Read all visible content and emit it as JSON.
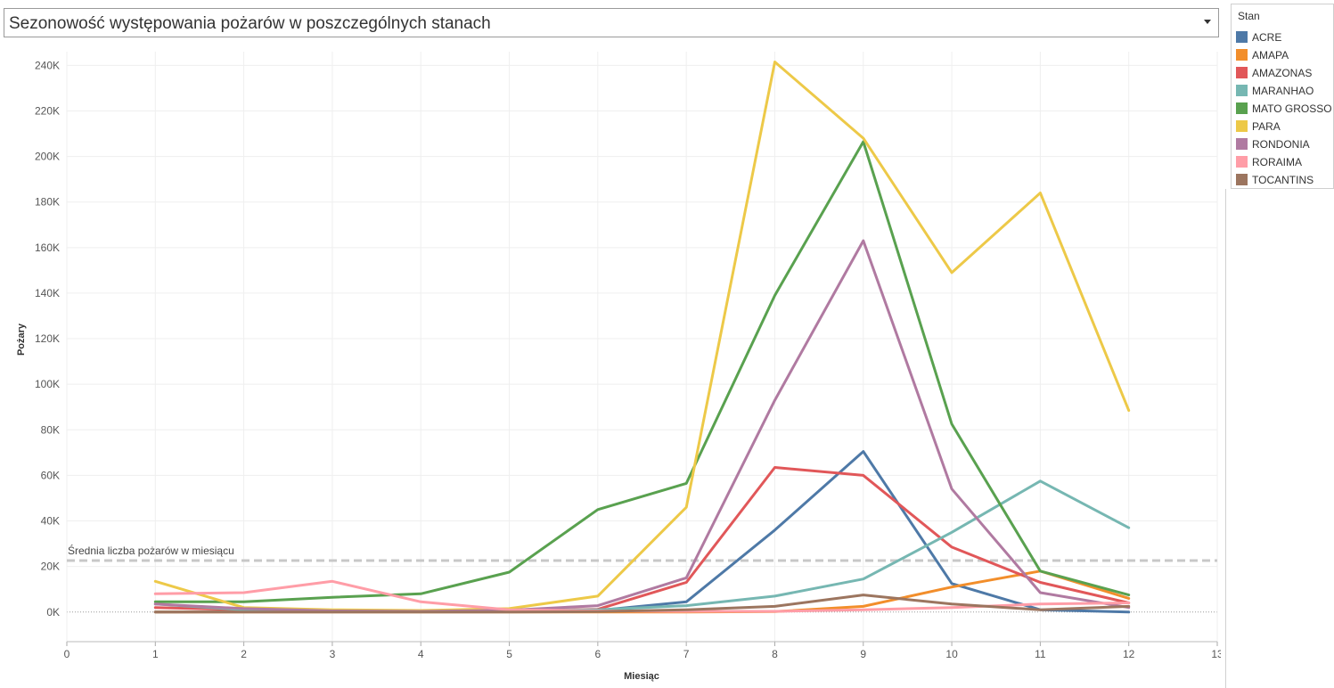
{
  "colors": {
    "ACRE": "#4e79a7",
    "AMAPA": "#f28e2b",
    "AMAZONAS": "#e15759",
    "MARANHAO": "#76b7b2",
    "MATO GROSSO": "#59a14f",
    "PARA": "#edc948",
    "RONDONIA": "#b07aa1",
    "RORAIMA": "#ff9da7",
    "TOCANTINS": "#9c755f",
    "reference_line": "#c8c8c8",
    "grid": "#efefef"
  },
  "header": {
    "title": "Sezonowość występowania pożarów w poszczególnych stanach",
    "dropdown_icon": "caret-down-icon"
  },
  "legend": {
    "title": "Stan",
    "items": [
      "ACRE",
      "AMAPA",
      "AMAZONAS",
      "MARANHAO",
      "MATO GROSSO",
      "PARA",
      "RONDONIA",
      "RORAIMA",
      "TOCANTINS"
    ]
  },
  "chart_data": {
    "type": "line",
    "title": "Sezonowość występowania pożarów w poszczególnych stanach",
    "xlabel": "Miesiąc",
    "ylabel": "Pożary",
    "x": [
      1,
      2,
      3,
      4,
      5,
      6,
      7,
      8,
      9,
      10,
      11,
      12
    ],
    "xlim": [
      0,
      13
    ],
    "ylim": [
      -13000,
      246000
    ],
    "x_ticks": [
      "0",
      "1",
      "2",
      "3",
      "4",
      "5",
      "6",
      "7",
      "8",
      "9",
      "10",
      "11",
      "12",
      "13"
    ],
    "y_ticks": [
      {
        "value": 0,
        "label": "0K"
      },
      {
        "value": 20000,
        "label": "20K"
      },
      {
        "value": 40000,
        "label": "40K"
      },
      {
        "value": 60000,
        "label": "60K"
      },
      {
        "value": 80000,
        "label": "80K"
      },
      {
        "value": 100000,
        "label": "100K"
      },
      {
        "value": 120000,
        "label": "120K"
      },
      {
        "value": 140000,
        "label": "140K"
      },
      {
        "value": 160000,
        "label": "160K"
      },
      {
        "value": 180000,
        "label": "180K"
      },
      {
        "value": 200000,
        "label": "200K"
      },
      {
        "value": 220000,
        "label": "220K"
      },
      {
        "value": 240000,
        "label": "240K"
      }
    ],
    "grid": true,
    "legend_position": "right",
    "reference_line": {
      "value": 22600,
      "label": "Średnia liczba pożarów w miesiącu"
    },
    "series": [
      {
        "name": "ACRE",
        "values": [
          0,
          200,
          100,
          100,
          200,
          700,
          4500,
          36000,
          70500,
          12500,
          1000,
          0
        ]
      },
      {
        "name": "AMAPA",
        "values": [
          0,
          0,
          0,
          0,
          0,
          0,
          0,
          200,
          2500,
          11000,
          18000,
          6000
        ]
      },
      {
        "name": "AMAZONAS",
        "values": [
          2000,
          1000,
          500,
          300,
          500,
          1200,
          13000,
          63500,
          60000,
          28500,
          13000,
          4000
        ]
      },
      {
        "name": "MARANHAO",
        "values": [
          3500,
          1000,
          500,
          500,
          500,
          1000,
          2800,
          7000,
          14500,
          35000,
          57500,
          37000
        ]
      },
      {
        "name": "MATO GROSSO",
        "values": [
          4500,
          4500,
          6500,
          8000,
          17500,
          45000,
          56500,
          139000,
          206500,
          82500,
          18000,
          7500
        ]
      },
      {
        "name": "PARA",
        "values": [
          13500,
          2000,
          1000,
          700,
          1500,
          7000,
          46000,
          241500,
          208000,
          149000,
          184000,
          88500
        ]
      },
      {
        "name": "RONDONIA",
        "values": [
          3500,
          1500,
          500,
          300,
          800,
          2800,
          15000,
          93000,
          163000,
          54000,
          8500,
          2000
        ]
      },
      {
        "name": "RORAIMA",
        "values": [
          8000,
          8500,
          13500,
          4500,
          1000,
          500,
          300,
          300,
          1000,
          2000,
          3500,
          4000
        ]
      },
      {
        "name": "TOCANTINS",
        "values": [
          0,
          0,
          0,
          0,
          0,
          200,
          1000,
          2500,
          7500,
          3500,
          1000,
          2500
        ]
      }
    ]
  }
}
